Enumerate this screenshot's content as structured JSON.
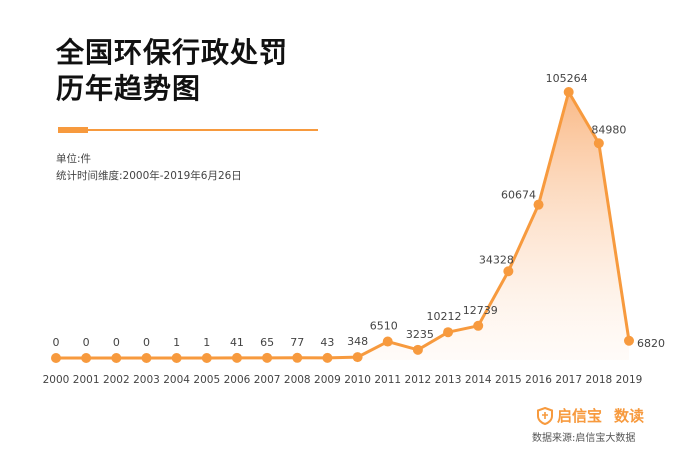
{
  "title_line1": "全国环保行政处罚",
  "title_line2": "历年趋势图",
  "unit": "单位:件",
  "range": "统计时间维度:2000年-2019年6月26日",
  "brand": {
    "name": "启信宝",
    "sub": "数读"
  },
  "source": "数据来源:启信宝大数据",
  "colors": {
    "accent": "#f79a3e",
    "fill_top": "#f9b27a",
    "fill_bottom": "#fff3ea"
  },
  "chart_data": {
    "type": "area",
    "title": "全国环保行政处罚历年趋势图",
    "ylabel": "单位:件",
    "x": [
      "2000",
      "2001",
      "2002",
      "2003",
      "2004",
      "2005",
      "2006",
      "2007",
      "2008",
      "2009",
      "2010",
      "2011",
      "2012",
      "2013",
      "2014",
      "2015",
      "2016",
      "2017",
      "2018",
      "2019"
    ],
    "series": [
      {
        "values": [
          0,
          0,
          0,
          0,
          1,
          1,
          41,
          65,
          77,
          43,
          348,
          6510,
          3235,
          10212,
          12739,
          34328,
          60674,
          105264,
          84980,
          6820
        ]
      }
    ],
    "labels": [
      "0",
      "0",
      "0",
      "0",
      "1",
      "1",
      "41",
      "65",
      "77",
      "43",
      "348",
      "6510",
      "3235",
      "10212",
      "12739",
      "34328",
      "60674",
      "105264",
      "84980",
      "6820"
    ],
    "ylim": [
      0,
      105264
    ],
    "grid": false,
    "legend": "none"
  }
}
